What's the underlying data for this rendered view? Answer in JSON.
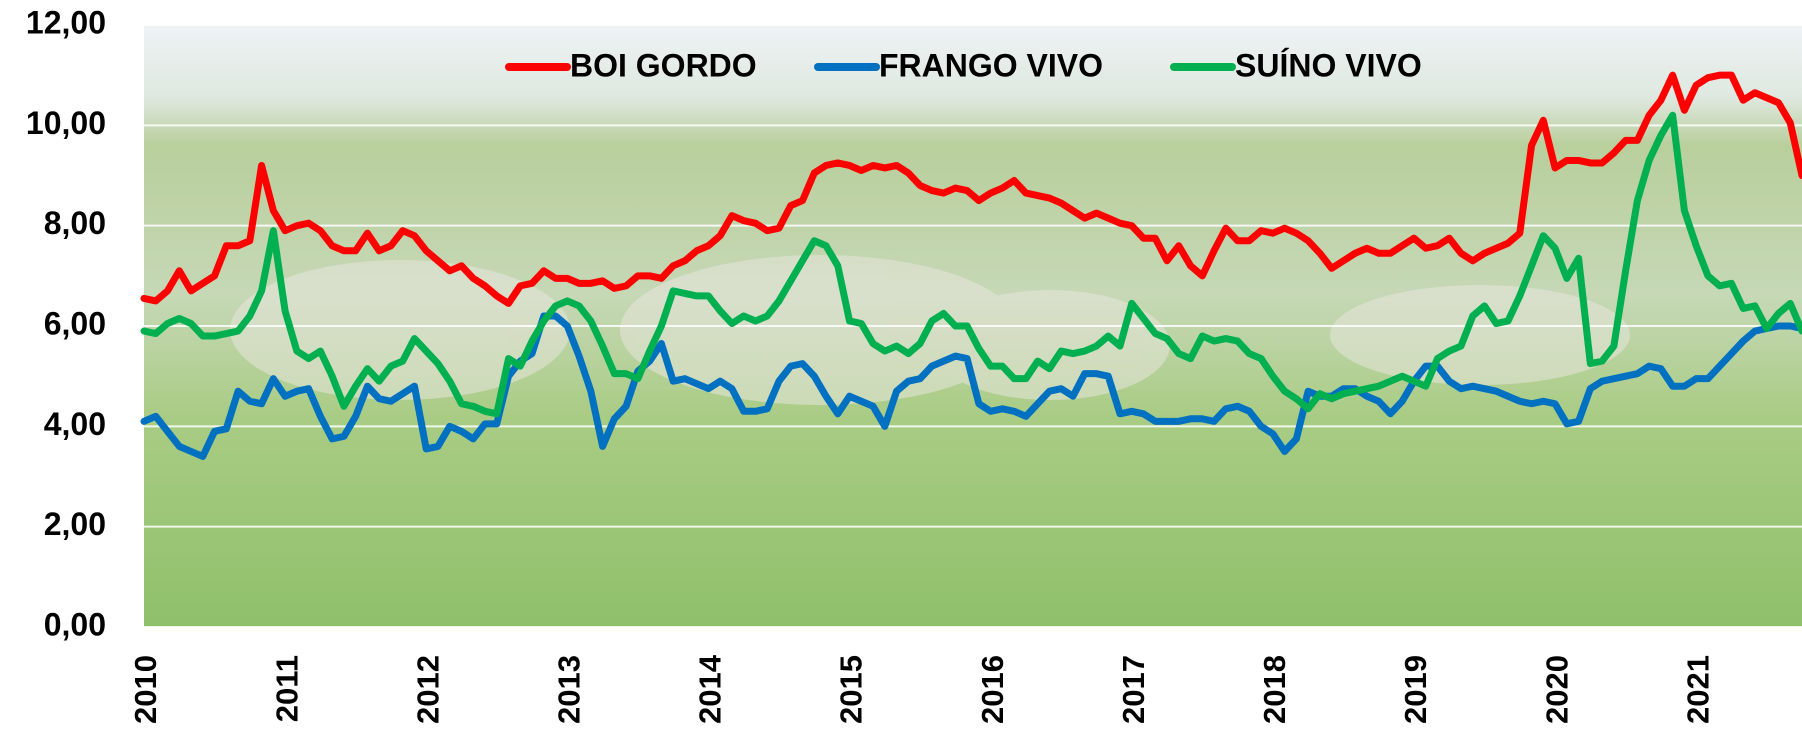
{
  "chart_data": {
    "type": "line",
    "categories": [
      "2010",
      null,
      null,
      null,
      null,
      null,
      null,
      null,
      null,
      null,
      null,
      null,
      "2011",
      null,
      null,
      null,
      null,
      null,
      null,
      null,
      null,
      null,
      null,
      null,
      "2012",
      null,
      null,
      null,
      null,
      null,
      null,
      null,
      null,
      null,
      null,
      null,
      "2013",
      null,
      null,
      null,
      null,
      null,
      null,
      null,
      null,
      null,
      null,
      null,
      "2014",
      null,
      null,
      null,
      null,
      null,
      null,
      null,
      null,
      null,
      null,
      null,
      "2015",
      null,
      null,
      null,
      null,
      null,
      null,
      null,
      null,
      null,
      null,
      null,
      "2016",
      null,
      null,
      null,
      null,
      null,
      null,
      null,
      null,
      null,
      null,
      null,
      "2017",
      null,
      null,
      null,
      null,
      null,
      null,
      null,
      null,
      null,
      null,
      null,
      "2018",
      null,
      null,
      null,
      null,
      null,
      null,
      null,
      null,
      null,
      null,
      null,
      "2019",
      null,
      null,
      null,
      null,
      null,
      null,
      null,
      null,
      null,
      null,
      null,
      "2020",
      null,
      null,
      null,
      null,
      null,
      null,
      null,
      null,
      null,
      null,
      null,
      "2021",
      null,
      null,
      null,
      null,
      null,
      null,
      null,
      null,
      null
    ],
    "series": [
      {
        "name": "BOI GORDO",
        "color": "#ff0000",
        "values": [
          6.55,
          6.5,
          6.7,
          7.1,
          6.7,
          6.85,
          7.0,
          7.6,
          7.6,
          7.7,
          9.2,
          8.3,
          7.9,
          8.0,
          8.05,
          7.9,
          7.6,
          7.5,
          7.5,
          7.85,
          7.5,
          7.6,
          7.9,
          7.8,
          7.5,
          7.3,
          7.1,
          7.2,
          6.95,
          6.8,
          6.6,
          6.45,
          6.8,
          6.85,
          7.1,
          6.95,
          6.95,
          6.85,
          6.85,
          6.9,
          6.75,
          6.8,
          7.0,
          7.0,
          6.95,
          7.2,
          7.3,
          7.5,
          7.6,
          7.8,
          8.2,
          8.1,
          8.05,
          7.9,
          7.95,
          8.4,
          8.5,
          9.05,
          9.2,
          9.25,
          9.2,
          9.1,
          9.2,
          9.15,
          9.2,
          9.05,
          8.8,
          8.7,
          8.65,
          8.75,
          8.7,
          8.5,
          8.65,
          8.75,
          8.9,
          8.65,
          8.6,
          8.55,
          8.45,
          8.3,
          8.15,
          8.25,
          8.15,
          8.05,
          8.0,
          7.75,
          7.75,
          7.3,
          7.6,
          7.2,
          7.0,
          7.5,
          7.95,
          7.7,
          7.7,
          7.9,
          7.85,
          7.95,
          7.85,
          7.7,
          7.45,
          7.15,
          7.3,
          7.45,
          7.55,
          7.45,
          7.45,
          7.6,
          7.75,
          7.55,
          7.6,
          7.75,
          7.45,
          7.3,
          7.45,
          7.55,
          7.65,
          7.85,
          9.6,
          10.1,
          9.15,
          9.3,
          9.3,
          9.25,
          9.25,
          9.45,
          9.7,
          9.7,
          10.2,
          10.5,
          11.0,
          10.3,
          10.8,
          10.95,
          11.0,
          11.0,
          10.5,
          10.65,
          10.55,
          10.45,
          10.05,
          9.0
        ]
      },
      {
        "name": "FRANGO VIVO",
        "color": "#0070c0",
        "values": [
          4.1,
          4.2,
          3.9,
          3.6,
          3.5,
          3.4,
          3.9,
          3.95,
          4.7,
          4.5,
          4.45,
          4.95,
          4.6,
          4.7,
          4.75,
          4.2,
          3.75,
          3.8,
          4.2,
          4.8,
          4.55,
          4.5,
          4.65,
          4.8,
          3.55,
          3.6,
          4.0,
          3.9,
          3.75,
          4.05,
          4.05,
          5.0,
          5.3,
          5.45,
          6.2,
          6.2,
          6.0,
          5.4,
          4.7,
          3.6,
          4.15,
          4.4,
          5.1,
          5.3,
          5.65,
          4.9,
          4.95,
          4.85,
          4.75,
          4.9,
          4.75,
          4.3,
          4.3,
          4.35,
          4.9,
          5.2,
          5.25,
          5.0,
          4.6,
          4.25,
          4.6,
          4.5,
          4.4,
          4.0,
          4.7,
          4.9,
          4.95,
          5.2,
          5.3,
          5.4,
          5.35,
          4.45,
          4.3,
          4.35,
          4.3,
          4.2,
          4.45,
          4.7,
          4.75,
          4.6,
          5.05,
          5.05,
          5.0,
          4.25,
          4.3,
          4.25,
          4.1,
          4.1,
          4.1,
          4.15,
          4.15,
          4.1,
          4.35,
          4.4,
          4.3,
          4.0,
          3.85,
          3.5,
          3.75,
          4.7,
          4.6,
          4.6,
          4.75,
          4.75,
          4.6,
          4.5,
          4.25,
          4.5,
          4.9,
          5.2,
          5.2,
          4.9,
          4.75,
          4.8,
          4.75,
          4.7,
          4.6,
          4.5,
          4.45,
          4.5,
          4.45,
          4.05,
          4.1,
          4.75,
          4.9,
          4.95,
          5.0,
          5.05,
          5.2,
          5.15,
          4.8,
          4.8,
          4.95,
          4.95,
          5.2,
          5.45,
          5.7,
          5.9,
          5.95,
          6.0,
          6.0,
          5.95
        ]
      },
      {
        "name": "SUÍNO VIVO",
        "color": "#00b050",
        "values": [
          5.9,
          5.85,
          6.05,
          6.15,
          6.05,
          5.8,
          5.8,
          5.85,
          5.9,
          6.2,
          6.7,
          7.9,
          6.3,
          5.5,
          5.35,
          5.5,
          5.0,
          4.4,
          4.8,
          5.15,
          4.9,
          5.2,
          5.3,
          5.75,
          5.5,
          5.25,
          4.9,
          4.45,
          4.4,
          4.3,
          4.25,
          5.35,
          5.2,
          5.7,
          6.1,
          6.4,
          6.5,
          6.4,
          6.1,
          5.6,
          5.05,
          5.05,
          4.95,
          5.5,
          6.0,
          6.7,
          6.65,
          6.6,
          6.6,
          6.3,
          6.05,
          6.2,
          6.1,
          6.2,
          6.5,
          6.9,
          7.3,
          7.7,
          7.6,
          7.2,
          6.1,
          6.05,
          5.65,
          5.5,
          5.6,
          5.45,
          5.65,
          6.1,
          6.25,
          6.0,
          6.0,
          5.55,
          5.2,
          5.2,
          4.95,
          4.95,
          5.3,
          5.15,
          5.5,
          5.45,
          5.5,
          5.6,
          5.8,
          5.6,
          6.45,
          6.15,
          5.85,
          5.75,
          5.45,
          5.35,
          5.8,
          5.7,
          5.75,
          5.7,
          5.45,
          5.35,
          5.0,
          4.7,
          4.55,
          4.35,
          4.65,
          4.55,
          4.65,
          4.7,
          4.75,
          4.8,
          4.9,
          5.0,
          4.9,
          4.8,
          5.35,
          5.5,
          5.6,
          6.2,
          6.4,
          6.05,
          6.1,
          6.6,
          7.2,
          7.8,
          7.55,
          6.95,
          7.35,
          5.25,
          5.3,
          5.6,
          7.1,
          8.5,
          9.3,
          9.8,
          10.2,
          8.3,
          7.6,
          7.0,
          6.8,
          6.85,
          6.35,
          6.4,
          5.95,
          6.25,
          6.45,
          5.9
        ]
      }
    ],
    "ylim": [
      0,
      12
    ],
    "yticks": [
      {
        "value": 0,
        "label": "0,00"
      },
      {
        "value": 2,
        "label": "2,00"
      },
      {
        "value": 4,
        "label": "4,00"
      },
      {
        "value": 6,
        "label": "6,00"
      },
      {
        "value": 8,
        "label": "8,00"
      },
      {
        "value": 10,
        "label": "10,00"
      },
      {
        "value": 12,
        "label": "12,00"
      }
    ],
    "grid": true,
    "legend": "top"
  }
}
